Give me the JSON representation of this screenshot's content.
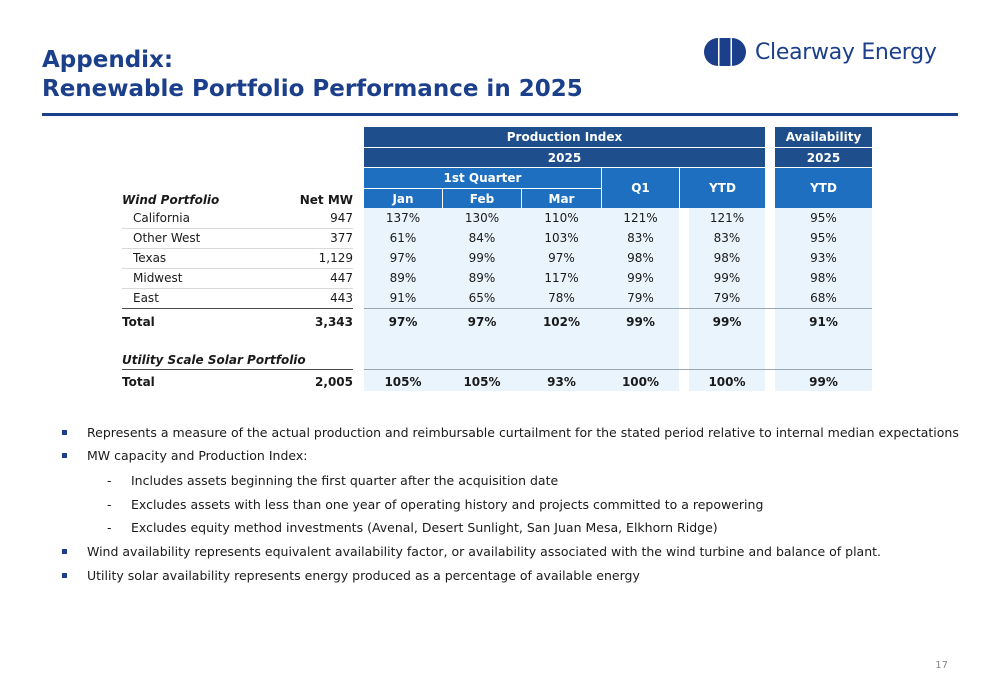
{
  "header": {
    "title_line1": "Appendix:",
    "title_line2": "Renewable Portfolio Performance in 2025",
    "logo_text": "Clearway Energy",
    "brand_color": "#1b3f8b"
  },
  "table": {
    "group_header_production": "Production Index",
    "group_header_availability": "Availability",
    "year_production": "2025",
    "year_availability": "2025",
    "quarter_label": "1st Quarter",
    "month_cols": [
      "Jan",
      "Feb",
      "Mar"
    ],
    "q1_label": "Q1",
    "ytd_label": "YTD",
    "avail_ytd_label": "YTD",
    "wind_section_label": "Wind Portfolio",
    "net_mw_label": "Net MW",
    "wind_rows": [
      {
        "region": "California",
        "mw": "947",
        "jan": "137%",
        "feb": "130%",
        "mar": "110%",
        "q1": "121%",
        "ytd": "121%",
        "avail": "95%"
      },
      {
        "region": "Other West",
        "mw": "377",
        "jan": "61%",
        "feb": "84%",
        "mar": "103%",
        "q1": "83%",
        "ytd": "83%",
        "avail": "95%"
      },
      {
        "region": "Texas",
        "mw": "1,129",
        "jan": "97%",
        "feb": "99%",
        "mar": "97%",
        "q1": "98%",
        "ytd": "98%",
        "avail": "93%"
      },
      {
        "region": "Midwest",
        "mw": "447",
        "jan": "89%",
        "feb": "89%",
        "mar": "117%",
        "q1": "99%",
        "ytd": "99%",
        "avail": "98%"
      },
      {
        "region": "East",
        "mw": "443",
        "jan": "91%",
        "feb": "65%",
        "mar": "78%",
        "q1": "79%",
        "ytd": "79%",
        "avail": "68%"
      }
    ],
    "wind_total": {
      "region": "Total",
      "mw": "3,343",
      "jan": "97%",
      "feb": "97%",
      "mar": "102%",
      "q1": "99%",
      "ytd": "99%",
      "avail": "91%"
    },
    "solar_section_label": "Utility Scale Solar Portfolio",
    "solar_total": {
      "region": "Total",
      "mw": "2,005",
      "jan": "105%",
      "feb": "105%",
      "mar": "93%",
      "q1": "100%",
      "ytd": "100%",
      "avail": "99%"
    }
  },
  "notes": {
    "b1": "Represents a measure of the actual production and reimbursable curtailment for the stated period relative to internal median expectations",
    "b2": "MW capacity and Production Index:",
    "s1": "Includes assets beginning the first quarter after the acquisition date",
    "s2": "Excludes assets with less than one year of operating history and projects committed to a repowering",
    "s3": "Excludes equity method investments (Avenal, Desert Sunlight, San Juan Mesa, Elkhorn Ridge)",
    "b3": "Wind availability represents equivalent availability factor, or availability associated with the wind turbine and balance of plant.",
    "b4": "Utility solar availability represents energy produced as a percentage of available energy",
    "dash": "-"
  },
  "footer": {
    "page_number": "17"
  }
}
